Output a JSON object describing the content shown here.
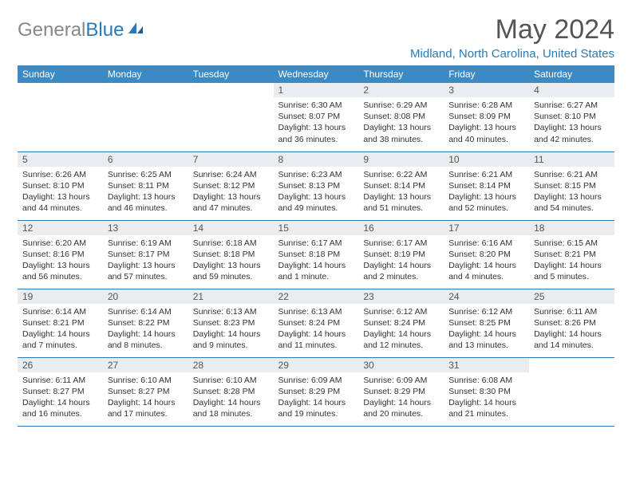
{
  "logo": {
    "part1": "General",
    "part2": "Blue"
  },
  "title": "May 2024",
  "location": "Midland, North Carolina, United States",
  "colors": {
    "header_bg": "#3b8ac4",
    "accent": "#2a7ab9",
    "daynum_bg": "#e9edf0",
    "text": "#333333",
    "title_text": "#555555",
    "logo_gray": "#888888"
  },
  "day_headers": [
    "Sunday",
    "Monday",
    "Tuesday",
    "Wednesday",
    "Thursday",
    "Friday",
    "Saturday"
  ],
  "weeks": [
    [
      null,
      null,
      null,
      {
        "n": "1",
        "sr": "6:30 AM",
        "ss": "8:07 PM",
        "dl": "13 hours and 36 minutes."
      },
      {
        "n": "2",
        "sr": "6:29 AM",
        "ss": "8:08 PM",
        "dl": "13 hours and 38 minutes."
      },
      {
        "n": "3",
        "sr": "6:28 AM",
        "ss": "8:09 PM",
        "dl": "13 hours and 40 minutes."
      },
      {
        "n": "4",
        "sr": "6:27 AM",
        "ss": "8:10 PM",
        "dl": "13 hours and 42 minutes."
      }
    ],
    [
      {
        "n": "5",
        "sr": "6:26 AM",
        "ss": "8:10 PM",
        "dl": "13 hours and 44 minutes."
      },
      {
        "n": "6",
        "sr": "6:25 AM",
        "ss": "8:11 PM",
        "dl": "13 hours and 46 minutes."
      },
      {
        "n": "7",
        "sr": "6:24 AM",
        "ss": "8:12 PM",
        "dl": "13 hours and 47 minutes."
      },
      {
        "n": "8",
        "sr": "6:23 AM",
        "ss": "8:13 PM",
        "dl": "13 hours and 49 minutes."
      },
      {
        "n": "9",
        "sr": "6:22 AM",
        "ss": "8:14 PM",
        "dl": "13 hours and 51 minutes."
      },
      {
        "n": "10",
        "sr": "6:21 AM",
        "ss": "8:14 PM",
        "dl": "13 hours and 52 minutes."
      },
      {
        "n": "11",
        "sr": "6:21 AM",
        "ss": "8:15 PM",
        "dl": "13 hours and 54 minutes."
      }
    ],
    [
      {
        "n": "12",
        "sr": "6:20 AM",
        "ss": "8:16 PM",
        "dl": "13 hours and 56 minutes."
      },
      {
        "n": "13",
        "sr": "6:19 AM",
        "ss": "8:17 PM",
        "dl": "13 hours and 57 minutes."
      },
      {
        "n": "14",
        "sr": "6:18 AM",
        "ss": "8:18 PM",
        "dl": "13 hours and 59 minutes."
      },
      {
        "n": "15",
        "sr": "6:17 AM",
        "ss": "8:18 PM",
        "dl": "14 hours and 1 minute."
      },
      {
        "n": "16",
        "sr": "6:17 AM",
        "ss": "8:19 PM",
        "dl": "14 hours and 2 minutes."
      },
      {
        "n": "17",
        "sr": "6:16 AM",
        "ss": "8:20 PM",
        "dl": "14 hours and 4 minutes."
      },
      {
        "n": "18",
        "sr": "6:15 AM",
        "ss": "8:21 PM",
        "dl": "14 hours and 5 minutes."
      }
    ],
    [
      {
        "n": "19",
        "sr": "6:14 AM",
        "ss": "8:21 PM",
        "dl": "14 hours and 7 minutes."
      },
      {
        "n": "20",
        "sr": "6:14 AM",
        "ss": "8:22 PM",
        "dl": "14 hours and 8 minutes."
      },
      {
        "n": "21",
        "sr": "6:13 AM",
        "ss": "8:23 PM",
        "dl": "14 hours and 9 minutes."
      },
      {
        "n": "22",
        "sr": "6:13 AM",
        "ss": "8:24 PM",
        "dl": "14 hours and 11 minutes."
      },
      {
        "n": "23",
        "sr": "6:12 AM",
        "ss": "8:24 PM",
        "dl": "14 hours and 12 minutes."
      },
      {
        "n": "24",
        "sr": "6:12 AM",
        "ss": "8:25 PM",
        "dl": "14 hours and 13 minutes."
      },
      {
        "n": "25",
        "sr": "6:11 AM",
        "ss": "8:26 PM",
        "dl": "14 hours and 14 minutes."
      }
    ],
    [
      {
        "n": "26",
        "sr": "6:11 AM",
        "ss": "8:27 PM",
        "dl": "14 hours and 16 minutes."
      },
      {
        "n": "27",
        "sr": "6:10 AM",
        "ss": "8:27 PM",
        "dl": "14 hours and 17 minutes."
      },
      {
        "n": "28",
        "sr": "6:10 AM",
        "ss": "8:28 PM",
        "dl": "14 hours and 18 minutes."
      },
      {
        "n": "29",
        "sr": "6:09 AM",
        "ss": "8:29 PM",
        "dl": "14 hours and 19 minutes."
      },
      {
        "n": "30",
        "sr": "6:09 AM",
        "ss": "8:29 PM",
        "dl": "14 hours and 20 minutes."
      },
      {
        "n": "31",
        "sr": "6:08 AM",
        "ss": "8:30 PM",
        "dl": "14 hours and 21 minutes."
      },
      null
    ]
  ],
  "labels": {
    "sunrise": "Sunrise:",
    "sunset": "Sunset:",
    "daylight": "Daylight:"
  }
}
